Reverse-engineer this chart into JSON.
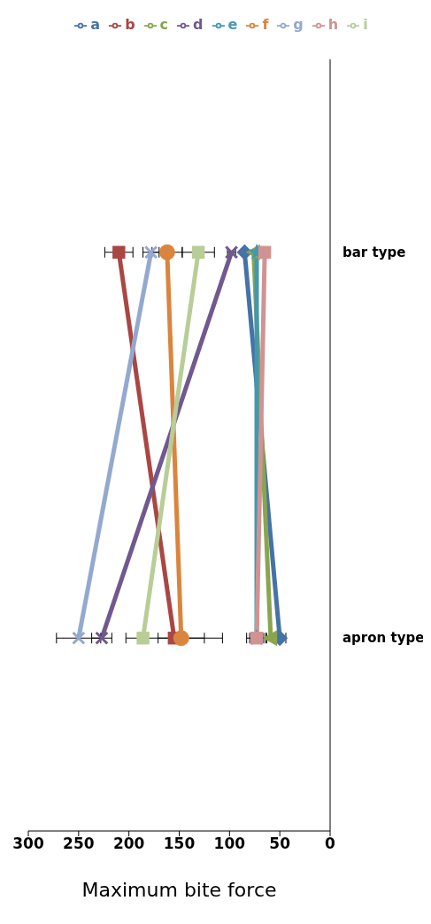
{
  "chart_data": {
    "type": "line",
    "orientation": "horizontal",
    "xlabel": "Maximum bite force",
    "categories": [
      "bar type",
      "apron type"
    ],
    "xlim": [
      300,
      0
    ],
    "xticks": [
      0,
      50,
      100,
      150,
      200,
      250,
      300
    ],
    "grid": false,
    "legend": "top",
    "line_style": "solid",
    "series": [
      {
        "name": "a",
        "color": "#4572a7",
        "marker": "diamond",
        "values": [
          85,
          50
        ],
        "errors": [
          null,
          6
        ]
      },
      {
        "name": "b",
        "color": "#aa4643",
        "marker": "square",
        "values": [
          210,
          155
        ],
        "errors": [
          14,
          48
        ]
      },
      {
        "name": "c",
        "color": "#89a54e",
        "marker": "triangle",
        "values": [
          76,
          59
        ],
        "errors": [
          null,
          5
        ]
      },
      {
        "name": "d",
        "color": "#71588f",
        "marker": "cross",
        "values": [
          98,
          227
        ],
        "errors": [
          4,
          10
        ]
      },
      {
        "name": "e",
        "color": "#4198af",
        "marker": "star",
        "values": [
          73,
          73
        ],
        "errors": [
          null,
          10
        ]
      },
      {
        "name": "f",
        "color": "#db843d",
        "marker": "circle",
        "values": [
          162,
          148
        ],
        "errors": [
          15,
          23
        ]
      },
      {
        "name": "g",
        "color": "#93a9cf",
        "marker": "cross",
        "values": [
          178,
          250
        ],
        "errors": [
          8,
          22
        ]
      },
      {
        "name": "h",
        "color": "#d19392",
        "marker": "square",
        "values": [
          65,
          73
        ],
        "errors": [
          null,
          7
        ]
      },
      {
        "name": "i",
        "color": "#b9cd96",
        "marker": "square",
        "values": [
          131,
          186
        ],
        "errors": [
          16,
          null
        ]
      }
    ]
  }
}
